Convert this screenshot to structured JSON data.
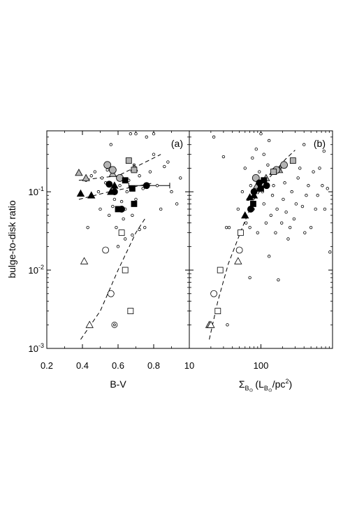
{
  "chart_data": [
    {
      "panel": "a",
      "type": "scatter",
      "panel_label": "(a)",
      "xlabel": "B-V",
      "ylabel": "bulge-to-disk ratio",
      "xscale": "linear",
      "yscale": "log",
      "xlim": [
        0.2,
        1.0
      ],
      "ylim": [
        0.001,
        0.6
      ],
      "x_ticks": [
        0.2,
        0.4,
        0.6,
        0.8
      ],
      "x_tick_labels": [
        "0.2",
        "0.4",
        "0.6",
        "0.8"
      ],
      "y_ticks": [
        0.001,
        0.01,
        0.1
      ],
      "y_tick_labels": [
        {
          "base": "10",
          "exp": "-3"
        },
        {
          "base": "10",
          "exp": "-2"
        },
        {
          "base": "10",
          "exp": "-1"
        }
      ],
      "grid": false,
      "series": [
        {
          "marker": "small-open-circle",
          "points": [
            [
              0.42,
              0.14
            ],
            [
              0.45,
              0.16
            ],
            [
              0.47,
              0.18
            ],
            [
              0.49,
              0.1
            ],
            [
              0.51,
              0.15
            ],
            [
              0.53,
              0.13
            ],
            [
              0.54,
              0.19
            ],
            [
              0.55,
              0.05
            ],
            [
              0.56,
              0.4
            ],
            [
              0.57,
              0.065
            ],
            [
              0.58,
              0.08
            ],
            [
              0.59,
              0.035
            ],
            [
              0.61,
              0.12
            ],
            [
              0.62,
              0.075
            ],
            [
              0.63,
              0.045
            ],
            [
              0.64,
              0.06
            ],
            [
              0.65,
              0.1
            ],
            [
              0.66,
              0.14
            ],
            [
              0.67,
              0.55
            ],
            [
              0.68,
              0.05
            ],
            [
              0.69,
              0.22
            ],
            [
              0.7,
              0.08
            ],
            [
              0.72,
              0.16
            ],
            [
              0.74,
              0.11
            ],
            [
              0.75,
              0.035
            ],
            [
              0.76,
              0.5
            ],
            [
              0.78,
              0.18
            ],
            [
              0.8,
              0.3
            ],
            [
              0.82,
              0.12
            ],
            [
              0.84,
              0.06
            ],
            [
              0.86,
              0.21
            ],
            [
              0.88,
              0.24
            ],
            [
              0.9,
              0.1
            ],
            [
              0.93,
              0.07
            ],
            [
              0.95,
              0.15
            ],
            [
              0.72,
              0.033
            ],
            [
              0.68,
              0.028
            ],
            [
              0.64,
              0.025
            ],
            [
              0.6,
              0.02
            ],
            [
              0.43,
              0.035
            ],
            [
              0.7,
              0.55
            ],
            [
              0.5,
              0.06
            ],
            [
              0.8,
              0.55
            ]
          ]
        },
        {
          "marker": "gray-triangle",
          "points": [
            [
              0.38,
              0.175
            ],
            [
              0.42,
              0.15
            ],
            [
              0.57,
              0.17
            ],
            [
              0.69,
              0.2
            ]
          ]
        },
        {
          "marker": "gray-circle",
          "points": [
            [
              0.54,
              0.22
            ],
            [
              0.57,
              0.19
            ],
            [
              0.61,
              0.15
            ]
          ]
        },
        {
          "marker": "gray-square",
          "points": [
            [
              0.66,
              0.25
            ],
            [
              0.69,
              0.19
            ]
          ]
        },
        {
          "marker": "black-triangle",
          "points": [
            [
              0.39,
              0.095
            ],
            [
              0.45,
              0.09
            ],
            [
              0.56,
              0.1
            ],
            [
              0.58,
              0.12
            ]
          ]
        },
        {
          "marker": "black-circle",
          "points": [
            [
              0.55,
              0.125
            ],
            [
              0.58,
              0.1
            ],
            [
              0.62,
              0.06
            ],
            [
              0.76,
              0.12
            ]
          ]
        },
        {
          "marker": "black-square",
          "points": [
            [
              0.6,
              0.06
            ],
            [
              0.64,
              0.14
            ],
            [
              0.68,
              0.11
            ],
            [
              0.69,
              0.07
            ]
          ]
        },
        {
          "marker": "open-triangle",
          "points": [
            [
              0.41,
              0.013
            ],
            [
              0.44,
              0.002
            ]
          ]
        },
        {
          "marker": "open-circle",
          "points": [
            [
              0.53,
              0.018
            ],
            [
              0.56,
              0.005
            ]
          ]
        },
        {
          "marker": "open-square",
          "points": [
            [
              0.62,
              0.03
            ],
            [
              0.64,
              0.01
            ],
            [
              0.67,
              0.003
            ]
          ]
        },
        {
          "marker": "dotted-circle",
          "points": [
            [
              0.58,
              0.002
            ]
          ]
        }
      ],
      "error_bars": [
        {
          "x": 0.76,
          "y": 0.12,
          "xmin": 0.66,
          "xmax": 0.89
        }
      ],
      "fit_lines": [
        {
          "points": [
            [
              0.38,
              0.14
            ],
            [
              0.6,
              0.16
            ],
            [
              0.84,
              0.3
            ]
          ]
        },
        {
          "points": [
            [
              0.38,
              0.08
            ],
            [
              0.55,
              0.1
            ],
            [
              0.8,
              0.13
            ]
          ]
        },
        {
          "points": [
            [
              0.39,
              0.0013
            ],
            [
              0.5,
              0.003
            ],
            [
              0.6,
              0.01
            ],
            [
              0.7,
              0.03
            ],
            [
              0.75,
              0.045
            ]
          ]
        }
      ]
    },
    {
      "panel": "b",
      "type": "scatter",
      "panel_label": "(b)",
      "xlabel": {
        "main": "Σ",
        "main_sub": "B",
        "main_sub2": "⊙",
        "paren_open": "(L",
        "unit_sub": "B",
        "unit_sub2": "⊙",
        "unit_mid": "/pc",
        "unit_sup": "2",
        "paren_close": ")"
      },
      "xscale": "log",
      "yscale": "log",
      "xlim": [
        10,
        1000
      ],
      "ylim": [
        0.001,
        0.6
      ],
      "x_ticks": [
        10,
        100
      ],
      "x_tick_labels": [
        "10",
        "100"
      ],
      "grid": false,
      "series": [
        {
          "marker": "small-open-circle",
          "points": [
            [
              22,
              0.5
            ],
            [
              30,
              0.28
            ],
            [
              33,
              0.035
            ],
            [
              36,
              0.035
            ],
            [
              48,
              0.06
            ],
            [
              55,
              0.1
            ],
            [
              60,
              0.2
            ],
            [
              62,
              0.04
            ],
            [
              66,
              0.08
            ],
            [
              70,
              0.035
            ],
            [
              72,
              0.12
            ],
            [
              76,
              0.27
            ],
            [
              78,
              0.06
            ],
            [
              82,
              0.15
            ],
            [
              86,
              0.35
            ],
            [
              90,
              0.03
            ],
            [
              95,
              0.18
            ],
            [
              100,
              0.55
            ],
            [
              105,
              0.1
            ],
            [
              110,
              0.07
            ],
            [
              118,
              0.04
            ],
            [
              125,
              0.22
            ],
            [
              130,
              0.015
            ],
            [
              138,
              0.05
            ],
            [
              145,
              0.09
            ],
            [
              150,
              0.12
            ],
            [
              160,
              0.03
            ],
            [
              168,
              0.06
            ],
            [
              175,
              0.0075
            ],
            [
              185,
              0.2
            ],
            [
              195,
              0.04
            ],
            [
              205,
              0.08
            ],
            [
              215,
              0.13
            ],
            [
              225,
              0.055
            ],
            [
              240,
              0.025
            ],
            [
              255,
              0.035
            ],
            [
              270,
              0.1
            ],
            [
              290,
              0.045
            ],
            [
              310,
              0.07
            ],
            [
              330,
              0.15
            ],
            [
              350,
              0.2
            ],
            [
              380,
              0.065
            ],
            [
              410,
              0.03
            ],
            [
              430,
              0.09
            ],
            [
              460,
              0.12
            ],
            [
              500,
              0.035
            ],
            [
              540,
              0.18
            ],
            [
              580,
              0.06
            ],
            [
              620,
              0.09
            ],
            [
              660,
              0.2
            ],
            [
              720,
              0.12
            ],
            [
              780,
              0.06
            ],
            [
              850,
              0.11
            ],
            [
              920,
              0.017
            ],
            [
              760,
              0.33
            ],
            [
              400,
              0.4
            ],
            [
              130,
              0.45
            ],
            [
              110,
              0.3
            ],
            [
              70,
              0.008
            ],
            [
              34,
              0.002
            ]
          ]
        },
        {
          "marker": "gray-triangle",
          "points": [
            [
              19,
              0.002
            ],
            [
              88,
              0.12
            ],
            [
              118,
              0.15
            ],
            [
              148,
              0.18
            ],
            [
              180,
              0.19
            ]
          ]
        },
        {
          "marker": "gray-circle",
          "points": [
            [
              85,
              0.15
            ],
            [
              165,
              0.19
            ],
            [
              210,
              0.22
            ]
          ]
        },
        {
          "marker": "gray-square",
          "points": [
            [
              150,
              0.18
            ],
            [
              280,
              0.25
            ]
          ]
        },
        {
          "marker": "black-triangle",
          "points": [
            [
              60,
              0.05
            ],
            [
              70,
              0.085
            ],
            [
              80,
              0.09
            ],
            [
              95,
              0.11
            ]
          ]
        },
        {
          "marker": "black-circle",
          "points": [
            [
              72,
              0.06
            ],
            [
              80,
              0.1
            ],
            [
              95,
              0.13
            ],
            [
              120,
              0.12
            ]
          ]
        },
        {
          "marker": "black-square",
          "points": [
            [
              78,
              0.07
            ],
            [
              100,
              0.11
            ],
            [
              110,
              0.14
            ]
          ]
        },
        {
          "marker": "open-triangle",
          "points": [
            [
              20,
              0.002
            ],
            [
              48,
              0.013
            ]
          ]
        },
        {
          "marker": "open-circle",
          "points": [
            [
              22,
              0.005
            ],
            [
              50,
              0.018
            ]
          ]
        },
        {
          "marker": "open-square",
          "points": [
            [
              25,
              0.003
            ],
            [
              27,
              0.01
            ],
            [
              52,
              0.03
            ]
          ]
        }
      ],
      "fit_lines": [
        {
          "points": [
            [
              19,
              0.0013
            ],
            [
              25,
              0.004
            ],
            [
              35,
              0.012
            ],
            [
              55,
              0.035
            ],
            [
              80,
              0.08
            ],
            [
              130,
              0.15
            ],
            [
              220,
              0.26
            ],
            [
              300,
              0.34
            ]
          ]
        }
      ]
    }
  ]
}
